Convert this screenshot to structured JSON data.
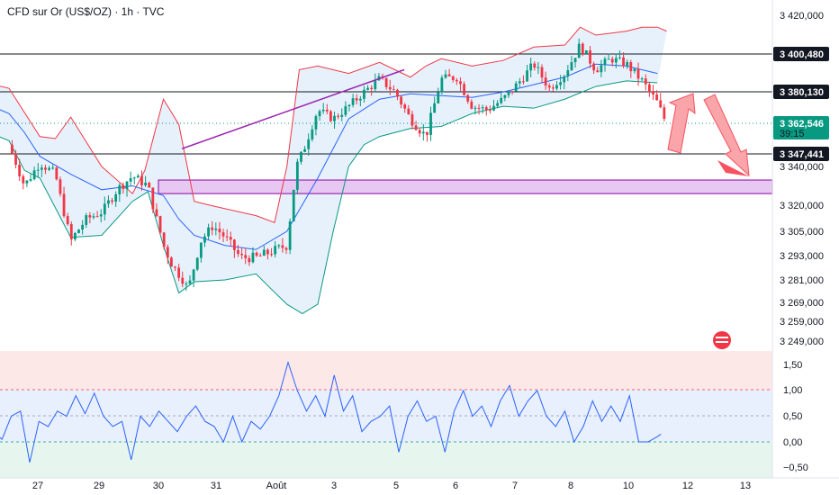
{
  "header": {
    "title": "CFD sur Or (US$/OZ) · 1h · TVC"
  },
  "colors": {
    "up": "#089981",
    "down": "#f23645",
    "bb_upper": "#f23645",
    "bb_lower": "#089981",
    "bb_mid": "#2962ff",
    "bb_fill": "#e3f0fb",
    "zone": "#9c27b0",
    "zone_fill": "#e6c8f2",
    "trend": "#9c27b0",
    "osc": "#2962ff",
    "arrow": "#f7525f"
  },
  "chart_data": [
    {
      "type": "candlestick",
      "title": "CFD sur Or (US$/OZ) · 1h · TVC",
      "y_ticks": [
        "3 420,000",
        "3 340,000",
        "3 320,000",
        "3 305,000",
        "3 293,000",
        "3 281,000",
        "3 269,000",
        "3 259,000",
        "3 249,000"
      ],
      "x_ticks": [
        "27",
        "29",
        "30",
        "31",
        "Août",
        "3",
        "5",
        "6",
        "7",
        "8",
        "10",
        "12",
        "13"
      ],
      "price_labels": [
        {
          "id": "pl1",
          "text": "3 400,480",
          "style": "dark"
        },
        {
          "id": "pl2",
          "text": "3 380,130",
          "style": "dark"
        },
        {
          "id": "pl3",
          "text": "3 362,546",
          "sub": "39:15",
          "style": "green"
        },
        {
          "id": "pl4",
          "text": "3 347,441",
          "style": "dark"
        }
      ],
      "horizontal_levels": [
        3400.48,
        3380.13,
        3347.441
      ],
      "current_price": 3362.546,
      "zone": [
        3333,
        3326
      ],
      "trendline": [
        [
          5.6,
          3350
        ],
        [
          12.8,
          3392
        ]
      ],
      "close_path": [
        [
          -1,
          3373
        ],
        [
          -0.5,
          3358
        ],
        [
          0,
          3352
        ],
        [
          0.5,
          3330
        ],
        [
          1,
          3342
        ],
        [
          1.5,
          3336
        ],
        [
          2,
          3300
        ],
        [
          2.5,
          3312
        ],
        [
          3,
          3316
        ],
        [
          3.5,
          3328
        ],
        [
          4,
          3335
        ],
        [
          4.5,
          3330
        ],
        [
          5,
          3298
        ],
        [
          5.3,
          3288
        ],
        [
          5.6,
          3282
        ],
        [
          5.8,
          3276
        ],
        [
          6.2,
          3300
        ],
        [
          6.6,
          3308
        ],
        [
          7,
          3302
        ],
        [
          7.5,
          3292
        ],
        [
          8,
          3292
        ],
        [
          8.5,
          3295
        ],
        [
          9,
          3298
        ],
        [
          9.3,
          3340
        ],
        [
          9.6,
          3352
        ],
        [
          10,
          3370
        ],
        [
          10.5,
          3365
        ],
        [
          11,
          3372
        ],
        [
          11.5,
          3380
        ],
        [
          12,
          3387
        ],
        [
          12.5,
          3380
        ],
        [
          13,
          3365
        ],
        [
          13.5,
          3356
        ],
        [
          14,
          3387
        ],
        [
          14.5,
          3388
        ],
        [
          15,
          3372
        ],
        [
          15.5,
          3370
        ],
        [
          16,
          3376
        ],
        [
          16.5,
          3385
        ],
        [
          17,
          3395
        ],
        [
          17.5,
          3382
        ],
        [
          18,
          3390
        ],
        [
          18.5,
          3405
        ],
        [
          19,
          3392
        ],
        [
          19.5,
          3398
        ],
        [
          20,
          3395
        ],
        [
          20.5,
          3386
        ],
        [
          21,
          3374
        ],
        [
          21.3,
          3362
        ]
      ],
      "bb": {
        "upper": [
          [
            -1,
            3386
          ],
          [
            0,
            3382
          ],
          [
            1,
            3356
          ],
          [
            1.5,
            3355
          ],
          [
            2,
            3366
          ],
          [
            3,
            3340
          ],
          [
            4,
            3326
          ],
          [
            4.4,
            3338
          ],
          [
            5,
            3376
          ],
          [
            5.5,
            3362
          ],
          [
            6,
            3322
          ],
          [
            6.5,
            3320
          ],
          [
            7,
            3318
          ],
          [
            8,
            3314
          ],
          [
            8.6,
            3310
          ],
          [
            9,
            3340
          ],
          [
            9.4,
            3392
          ],
          [
            10,
            3394
          ],
          [
            11,
            3390
          ],
          [
            12,
            3396
          ],
          [
            13,
            3388
          ],
          [
            13.5,
            3394
          ],
          [
            14,
            3398
          ],
          [
            15,
            3394
          ],
          [
            16,
            3397
          ],
          [
            17,
            3404
          ],
          [
            18,
            3405
          ],
          [
            18.5,
            3414
          ],
          [
            19,
            3410
          ],
          [
            20,
            3412
          ],
          [
            20.5,
            3414
          ],
          [
            21,
            3414
          ],
          [
            21.3,
            3412
          ]
        ],
        "mid": [
          [
            -1,
            3375
          ],
          [
            0,
            3368
          ],
          [
            0.5,
            3358
          ],
          [
            1,
            3346
          ],
          [
            2,
            3336
          ],
          [
            3,
            3328
          ],
          [
            4,
            3330
          ],
          [
            5,
            3325
          ],
          [
            5.5,
            3312
          ],
          [
            6,
            3303
          ],
          [
            7,
            3298
          ],
          [
            8,
            3296
          ],
          [
            9,
            3305
          ],
          [
            10,
            3334
          ],
          [
            11,
            3365
          ],
          [
            12,
            3376
          ],
          [
            13,
            3379
          ],
          [
            14,
            3378
          ],
          [
            15,
            3377
          ],
          [
            16,
            3380
          ],
          [
            17,
            3384
          ],
          [
            18,
            3388
          ],
          [
            19,
            3395
          ],
          [
            20,
            3394
          ],
          [
            21,
            3390
          ]
        ],
        "lower": [
          [
            -1,
            3360
          ],
          [
            0,
            3354
          ],
          [
            0.5,
            3338
          ],
          [
            1,
            3334
          ],
          [
            2,
            3302
          ],
          [
            3,
            3303
          ],
          [
            4,
            3322
          ],
          [
            4.5,
            3327
          ],
          [
            5,
            3298
          ],
          [
            5.5,
            3274
          ],
          [
            6,
            3280
          ],
          [
            7,
            3281
          ],
          [
            8,
            3284
          ],
          [
            8.5,
            3276
          ],
          [
            9,
            3268
          ],
          [
            9.5,
            3263
          ],
          [
            10,
            3268
          ],
          [
            10.5,
            3305
          ],
          [
            11,
            3340
          ],
          [
            11.5,
            3352
          ],
          [
            12,
            3356
          ],
          [
            13,
            3360
          ],
          [
            14,
            3361
          ],
          [
            15,
            3368
          ],
          [
            16,
            3372
          ],
          [
            17,
            3371
          ],
          [
            18,
            3376
          ],
          [
            19,
            3383
          ],
          [
            20,
            3386
          ],
          [
            21,
            3385
          ]
        ]
      }
    },
    {
      "type": "line",
      "y_ticks": [
        "1,50",
        "1,00",
        "0,50",
        "0,00",
        "−0,50"
      ],
      "series": [
        {
          "values": [
            [
              -1,
              0.05
            ],
            [
              -0.5,
              0.1
            ],
            [
              0,
              0.2
            ],
            [
              0.5,
              0.05
            ],
            [
              1,
              0.5
            ],
            [
              1.5,
              0.6
            ],
            [
              2,
              -0.4
            ],
            [
              2.5,
              0.4
            ],
            [
              3,
              0.3
            ],
            [
              3.5,
              0.6
            ],
            [
              4,
              0.5
            ],
            [
              4.5,
              0.9
            ],
            [
              5,
              0.55
            ],
            [
              5.5,
              0.95
            ],
            [
              6,
              0.5
            ],
            [
              6.5,
              0.3
            ],
            [
              7,
              0.4
            ],
            [
              7.5,
              -0.35
            ],
            [
              8,
              0.5
            ],
            [
              8.5,
              0.3
            ],
            [
              9,
              0.6
            ],
            [
              9.5,
              0.4
            ],
            [
              10,
              0.2
            ],
            [
              10.5,
              0.5
            ],
            [
              11,
              0.7
            ],
            [
              11.5,
              0.4
            ],
            [
              12,
              0.3
            ],
            [
              12.5,
              0.0
            ],
            [
              13,
              0.5
            ],
            [
              13.5,
              0.0
            ],
            [
              14,
              0.4
            ],
            [
              14.5,
              0.25
            ],
            [
              15,
              0.5
            ],
            [
              15.5,
              0.9
            ],
            [
              16,
              1.55
            ],
            [
              16.5,
              1.0
            ],
            [
              17,
              0.6
            ],
            [
              17.5,
              0.9
            ],
            [
              18,
              0.5
            ],
            [
              18.5,
              1.3
            ],
            [
              19,
              0.6
            ],
            [
              19.5,
              0.9
            ],
            [
              20,
              0.2
            ],
            [
              20.5,
              0.4
            ],
            [
              21,
              0.5
            ],
            [
              21.5,
              0.7
            ],
            [
              22,
              -0.2
            ],
            [
              22.5,
              0.5
            ],
            [
              23,
              0.8
            ],
            [
              23.5,
              0.4
            ],
            [
              24,
              0.5
            ],
            [
              24.5,
              -0.2
            ],
            [
              25,
              0.6
            ],
            [
              25.5,
              1.0
            ],
            [
              26,
              0.5
            ],
            [
              26.5,
              0.7
            ],
            [
              27,
              0.3
            ],
            [
              27.5,
              0.8
            ],
            [
              28,
              1.1
            ],
            [
              28.5,
              0.5
            ],
            [
              29,
              0.8
            ],
            [
              29.5,
              1.0
            ],
            [
              30,
              0.5
            ],
            [
              30.5,
              0.3
            ],
            [
              31,
              0.6
            ],
            [
              31.5,
              0.0
            ],
            [
              32,
              0.3
            ],
            [
              32.5,
              0.8
            ],
            [
              33,
              0.4
            ],
            [
              33.5,
              0.7
            ],
            [
              34,
              0.4
            ],
            [
              34.5,
              0.9
            ],
            [
              35,
              0.0
            ],
            [
              35.5,
              0.0
            ],
            [
              36,
              0.1
            ],
            [
              36.2,
              0.15
            ]
          ]
        }
      ]
    }
  ]
}
